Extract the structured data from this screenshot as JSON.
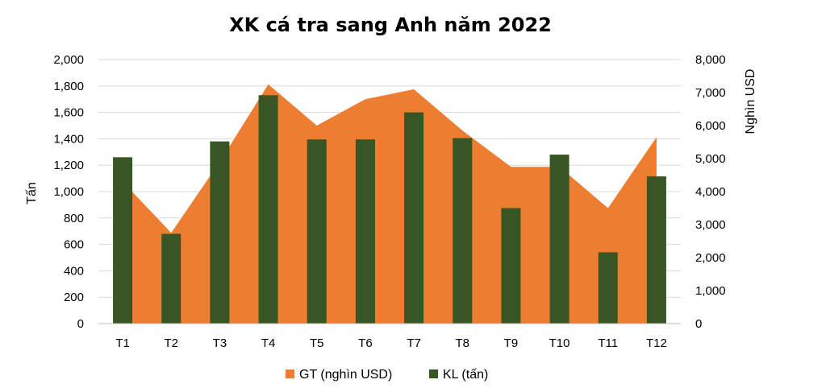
{
  "chart_data": {
    "type": "bar",
    "title": "XK cá tra sang Anh năm 2022",
    "categories": [
      "T1",
      "T2",
      "T3",
      "T4",
      "T5",
      "T6",
      "T7",
      "T8",
      "T9",
      "T10",
      "T11",
      "T12"
    ],
    "ylabel_left": "Tấn",
    "ylabel_right": "Nghìn USD",
    "ylim_left": [
      0,
      2000
    ],
    "ylim_right": [
      0,
      8000
    ],
    "yticks_left": [
      "0",
      "200",
      "400",
      "600",
      "800",
      "1,000",
      "1,200",
      "1,400",
      "1,600",
      "1,800",
      "2,000"
    ],
    "yticks_right": [
      "0",
      "1,000",
      "2,000",
      "3,000",
      "4,000",
      "5,000",
      "6,000",
      "7,000",
      "8,000"
    ],
    "grid": true,
    "legend_position": "bottom",
    "series": [
      {
        "name": "GT (nghìn USD)",
        "type": "area",
        "axis": "right",
        "color": "#ED7D31",
        "values": [
          4300,
          2750,
          4900,
          7250,
          6000,
          6800,
          7100,
          5850,
          4750,
          4750,
          3500,
          5650
        ]
      },
      {
        "name": "KL (tấn)",
        "type": "bar",
        "axis": "left",
        "color": "#375623",
        "values": [
          1260,
          680,
          1380,
          1730,
          1395,
          1395,
          1600,
          1405,
          875,
          1280,
          540,
          1115
        ]
      }
    ]
  }
}
